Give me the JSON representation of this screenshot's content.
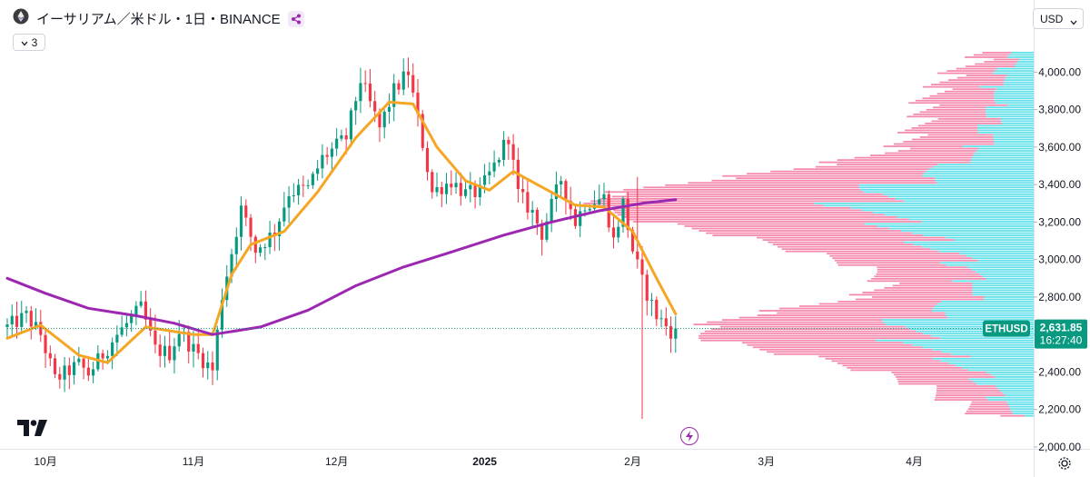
{
  "header": {
    "symbol_title": "イーサリアム／米ドル・1日・BINANCE",
    "indicator_count": "3",
    "currency": "USD"
  },
  "icons": {
    "coin": "ethereum-icon",
    "share": "share-icon",
    "indicator_toggle": "chevron-down-icon",
    "currency_dropdown": "chevron-down-icon",
    "logo": "tradingview-logo-icon",
    "events": "lightning-icon",
    "settings": "gear-icon"
  },
  "price_label": {
    "ticker": "ETHUSD",
    "price": "2,631.85",
    "countdown": "16:27:40"
  },
  "colors": {
    "up": "#089981",
    "down": "#f23645",
    "sma_short": "#f5a623",
    "sma_long": "#9c27b0",
    "vp_up": "#2ed5e2",
    "vp_down": "#f06292",
    "last_price": "#089981"
  },
  "chart_data": {
    "type": "candlestick",
    "title": "イーサリアム／米ドル・1日・BINANCE",
    "ylim": [
      1990,
      4220
    ],
    "y_ticks": [
      "4,000.00",
      "3,800.00",
      "3,600.00",
      "3,400.00",
      "3,200.00",
      "3,000.00",
      "2,800.00",
      "2,600.00",
      "2,400.00",
      "2,200.00",
      "2,000.00"
    ],
    "x_ticks": [
      "10月",
      "11月",
      "12月",
      "2025",
      "2月",
      "3月",
      "4月"
    ],
    "x_tick_dates": [
      "2024-10-01",
      "2024-11-01",
      "2024-12-01",
      "2025-01-01",
      "2025-02-01",
      "2025-03-01",
      "2025-04-01"
    ],
    "x_range": [
      "2024-09-23",
      "2025-04-26"
    ],
    "last_price": 2631.85,
    "anchor_closes": [
      [
        "2024-09-23",
        2640
      ],
      [
        "2024-09-27",
        2700
      ],
      [
        "2024-09-30",
        2600
      ],
      [
        "2024-10-03",
        2360
      ],
      [
        "2024-10-08",
        2440
      ],
      [
        "2024-10-10",
        2390
      ],
      [
        "2024-10-16",
        2600
      ],
      [
        "2024-10-21",
        2740
      ],
      [
        "2024-10-24",
        2520
      ],
      [
        "2024-10-27",
        2500
      ],
      [
        "2024-10-29",
        2620
      ],
      [
        "2024-11-01",
        2520
      ],
      [
        "2024-11-05",
        2410
      ],
      [
        "2024-11-07",
        2810
      ],
      [
        "2024-11-11",
        3270
      ],
      [
        "2024-11-14",
        3050
      ],
      [
        "2024-11-18",
        3150
      ],
      [
        "2024-11-21",
        3360
      ],
      [
        "2024-11-25",
        3380
      ],
      [
        "2024-11-28",
        3540
      ],
      [
        "2024-12-03",
        3650
      ],
      [
        "2024-12-06",
        3960
      ],
      [
        "2024-12-10",
        3700
      ],
      [
        "2024-12-13",
        3900
      ],
      [
        "2024-12-16",
        4000
      ],
      [
        "2024-12-19",
        3620
      ],
      [
        "2024-12-21",
        3360
      ],
      [
        "2024-12-25",
        3420
      ],
      [
        "2024-12-28",
        3350
      ],
      [
        "2024-12-31",
        3360
      ],
      [
        "2025-01-03",
        3500
      ],
      [
        "2025-01-06",
        3660
      ],
      [
        "2025-01-08",
        3350
      ],
      [
        "2025-01-11",
        3250
      ],
      [
        "2025-01-13",
        3140
      ],
      [
        "2025-01-17",
        3430
      ],
      [
        "2025-01-20",
        3200
      ],
      [
        "2025-01-22",
        3300
      ],
      [
        "2025-01-26",
        3330
      ],
      [
        "2025-01-28",
        3100
      ],
      [
        "2025-01-30",
        3300
      ],
      [
        "2025-02-01",
        3050
      ],
      [
        "2025-02-03",
        2880
      ],
      [
        "2025-02-06",
        2700
      ],
      [
        "2025-02-09",
        2620
      ],
      [
        "2025-02-10",
        2631.85
      ]
    ],
    "series": [
      {
        "name": "",
        "type": "sma",
        "color": "#f5a623",
        "values": [
          [
            "2024-09-23",
            2580
          ],
          [
            "2024-09-30",
            2650
          ],
          [
            "2024-10-08",
            2490
          ],
          [
            "2024-10-14",
            2450
          ],
          [
            "2024-10-22",
            2640
          ],
          [
            "2024-11-01",
            2600
          ],
          [
            "2024-11-05",
            2600
          ],
          [
            "2024-11-09",
            2920
          ],
          [
            "2024-11-13",
            3080
          ],
          [
            "2024-11-20",
            3150
          ],
          [
            "2024-11-27",
            3360
          ],
          [
            "2024-12-05",
            3650
          ],
          [
            "2024-12-12",
            3840
          ],
          [
            "2024-12-17",
            3830
          ],
          [
            "2024-12-22",
            3600
          ],
          [
            "2024-12-28",
            3420
          ],
          [
            "2025-01-02",
            3370
          ],
          [
            "2025-01-07",
            3470
          ],
          [
            "2025-01-12",
            3400
          ],
          [
            "2025-01-20",
            3290
          ],
          [
            "2025-01-26",
            3280
          ],
          [
            "2025-02-01",
            3150
          ],
          [
            "2025-02-06",
            2900
          ],
          [
            "2025-02-10",
            2710
          ]
        ]
      },
      {
        "name": "",
        "type": "sma",
        "color": "#9c27b0",
        "values": [
          [
            "2024-09-23",
            2900
          ],
          [
            "2024-10-01",
            2820
          ],
          [
            "2024-10-10",
            2740
          ],
          [
            "2024-10-20",
            2700
          ],
          [
            "2024-10-28",
            2660
          ],
          [
            "2024-11-05",
            2600
          ],
          [
            "2024-11-15",
            2640
          ],
          [
            "2024-11-25",
            2730
          ],
          [
            "2024-12-05",
            2860
          ],
          [
            "2024-12-15",
            2960
          ],
          [
            "2024-12-25",
            3040
          ],
          [
            "2025-01-05",
            3130
          ],
          [
            "2025-01-15",
            3200
          ],
          [
            "2025-01-25",
            3260
          ],
          [
            "2025-02-03",
            3300
          ],
          [
            "2025-02-10",
            3320
          ]
        ]
      }
    ],
    "volume_profile": {
      "price_range": [
        2160,
        4110
      ],
      "rows": 160,
      "legend_up": "",
      "legend_down": ""
    }
  }
}
